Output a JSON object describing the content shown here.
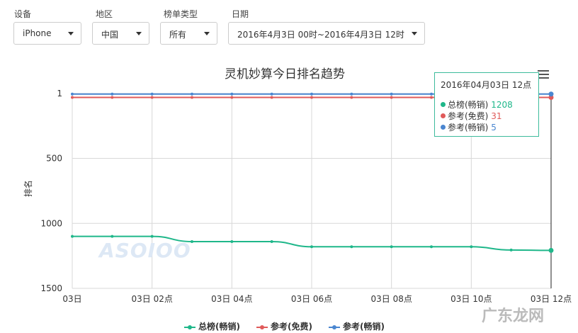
{
  "filters": [
    {
      "label": "设备",
      "value": "iPhone"
    },
    {
      "label": "地区",
      "value": "中国"
    },
    {
      "label": "榜单类型",
      "value": "所有"
    },
    {
      "label": "日期",
      "value": "2016年4月3日 00时~2016年4月3日 12时"
    }
  ],
  "chart_data": {
    "type": "line",
    "title": "灵机妙算今日排名趋势",
    "ylabel": "排名",
    "xlabel": "",
    "ylim": [
      1,
      1500
    ],
    "y_reversed": true,
    "yticks": [
      "1",
      "500",
      "1000",
      "1500"
    ],
    "xticks": [
      "03日",
      "03日 02点",
      "03日 04点",
      "03日 06点",
      "03日 08点",
      "03日 10点",
      "03日 12点"
    ],
    "x_hours": [
      0,
      1,
      2,
      3,
      4,
      5,
      6,
      7,
      8,
      9,
      10,
      11,
      12
    ],
    "series": [
      {
        "name": "总榜(畅销)",
        "color": "#1fb78a",
        "values": [
          1100,
          1100,
          1100,
          1140,
          1140,
          1140,
          1180,
          1180,
          1180,
          1180,
          1180,
          1205,
          1208
        ]
      },
      {
        "name": "参考(免费)",
        "color": "#e05a5a",
        "values": [
          31,
          31,
          31,
          31,
          31,
          31,
          31,
          31,
          31,
          31,
          31,
          31,
          31
        ]
      },
      {
        "name": "参考(畅销)",
        "color": "#4a86d0",
        "values": [
          5,
          5,
          5,
          5,
          5,
          5,
          5,
          5,
          5,
          5,
          5,
          5,
          5
        ]
      }
    ],
    "grid": true
  },
  "tooltip": {
    "title": "2016年04月03日 12点",
    "rows": [
      {
        "name": "总榜(畅销)",
        "value": "1208",
        "color": "#1fb78a"
      },
      {
        "name": "参考(免费)",
        "value": "31",
        "color": "#e05a5a"
      },
      {
        "name": "参考(畅销)",
        "value": "5",
        "color": "#4a86d0"
      }
    ]
  },
  "watermarks": {
    "chart": "ASOIOO",
    "corner": "广东龙网"
  }
}
